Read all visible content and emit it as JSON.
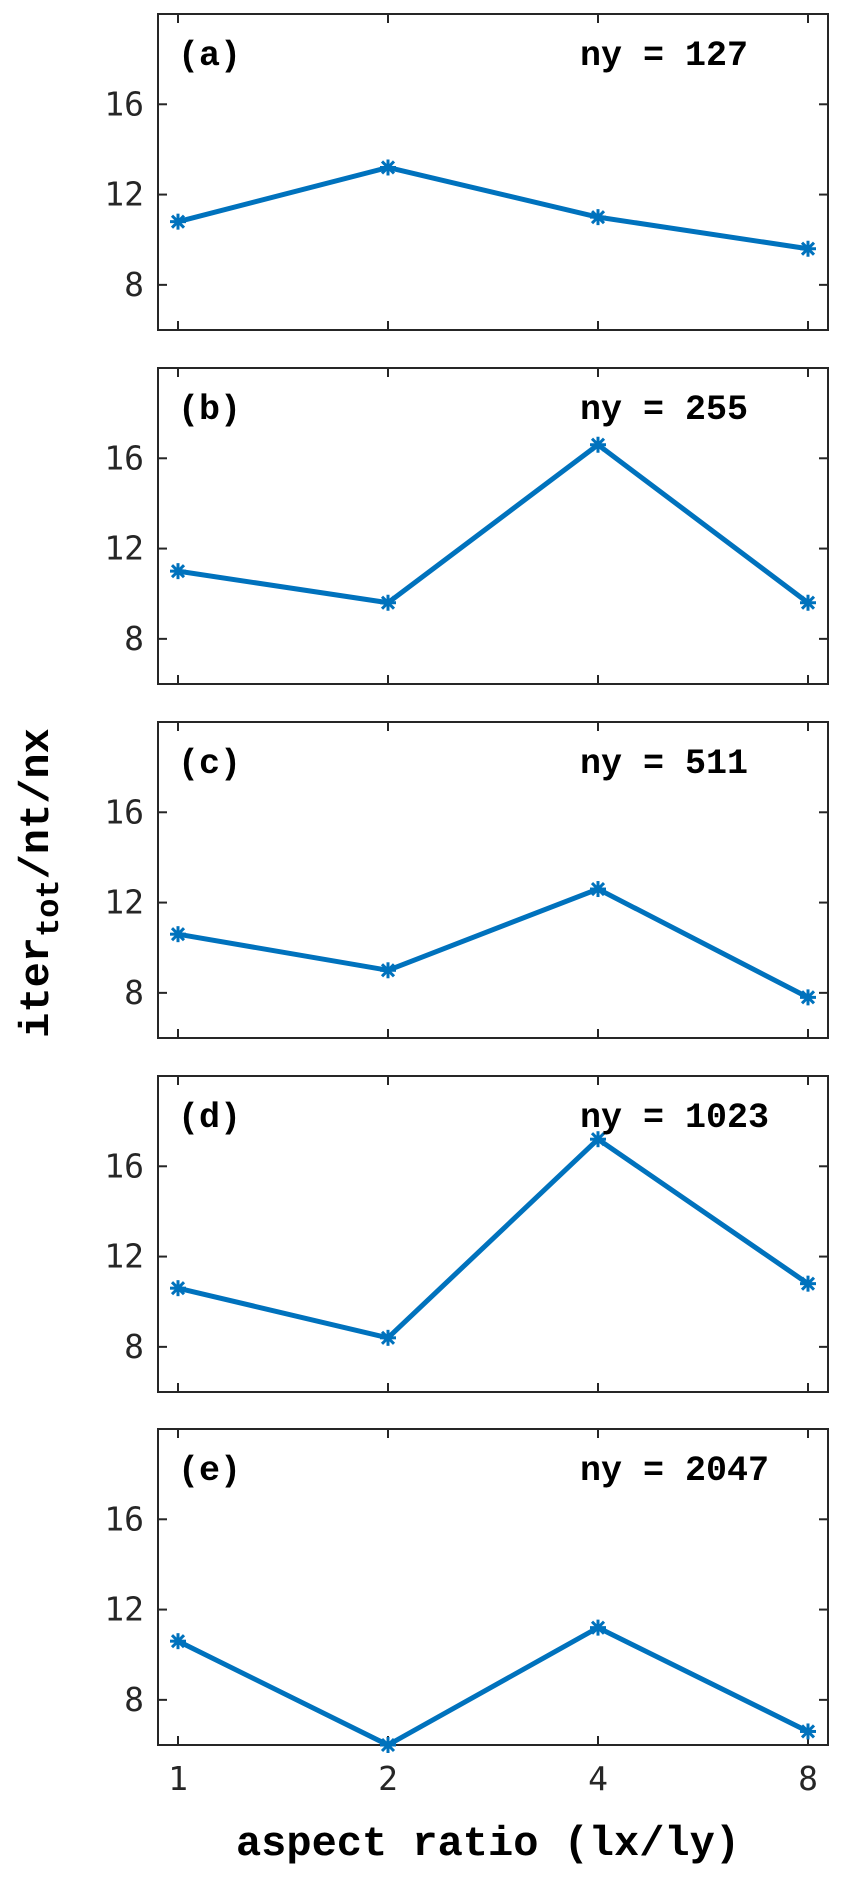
{
  "chart_data": {
    "type": "line",
    "xlabel": "aspect ratio (lx/ly)",
    "ylabel": {
      "base": "iter",
      "subscript": "tot",
      "suffix": "/nt/nx"
    },
    "x_scale": "log2",
    "x_ticks": [
      1,
      2,
      4,
      8
    ],
    "x_tick_labels": [
      "1",
      "2",
      "4",
      "8"
    ],
    "y_ticks": [
      8,
      12,
      16
    ],
    "y_tick_labels": [
      "8",
      "12",
      "16"
    ],
    "ylim": [
      6,
      20
    ],
    "line_color": "#0072bd",
    "marker": "asterisk",
    "panels": [
      {
        "label": "(a)",
        "annotation": "ny = 127",
        "x": [
          1,
          2,
          4,
          8
        ],
        "y": [
          10.8,
          13.2,
          11.0,
          9.6
        ]
      },
      {
        "label": "(b)",
        "annotation": "ny = 255",
        "x": [
          1,
          2,
          4,
          8
        ],
        "y": [
          11.0,
          9.6,
          16.6,
          9.6
        ]
      },
      {
        "label": "(c)",
        "annotation": "ny = 511",
        "x": [
          1,
          2,
          4,
          8
        ],
        "y": [
          10.6,
          9.0,
          12.6,
          7.8
        ]
      },
      {
        "label": "(d)",
        "annotation": "ny = 1023",
        "x": [
          1,
          2,
          4,
          8
        ],
        "y": [
          10.6,
          8.4,
          17.2,
          10.8
        ]
      },
      {
        "label": "(e)",
        "annotation": "ny = 2047",
        "x": [
          1,
          2,
          4,
          8
        ],
        "y": [
          10.6,
          6.0,
          11.2,
          6.6
        ]
      }
    ]
  }
}
